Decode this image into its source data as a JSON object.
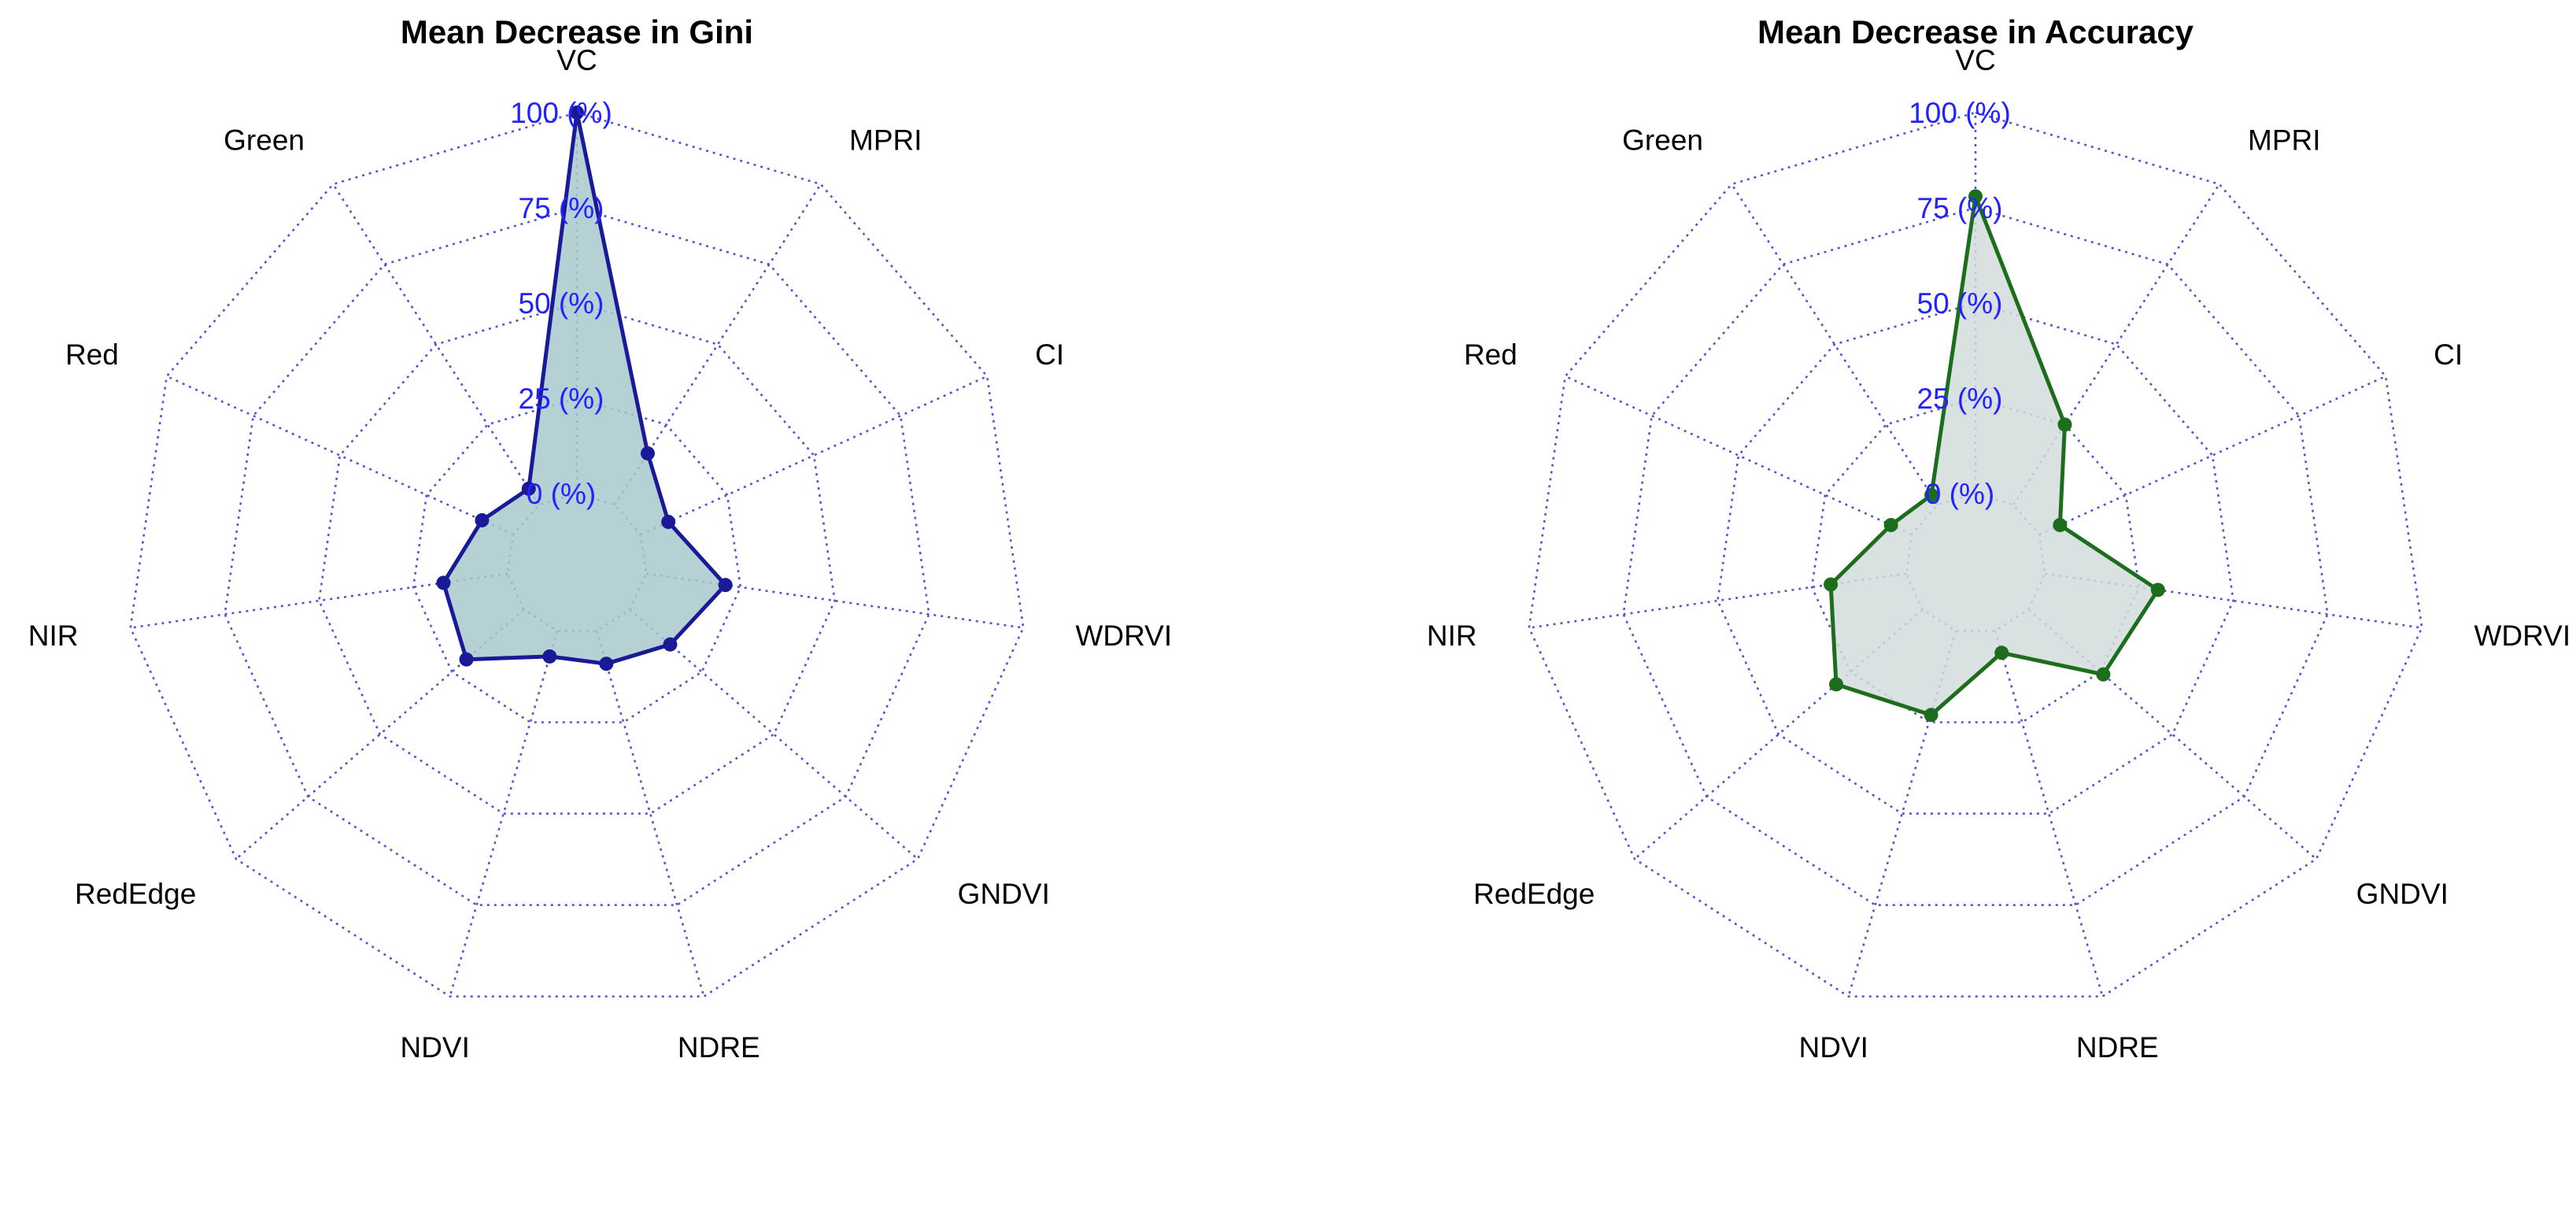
{
  "chart_data": [
    {
      "type": "radar",
      "title": "Mean Decrease in Gini",
      "axes": [
        "VC",
        "MPRI",
        "CI",
        "WDRVI",
        "GNDVI",
        "NDRE",
        "NDVI",
        "RedEdge",
        "NIR",
        "Red",
        "Green"
      ],
      "range": [
        0,
        100
      ],
      "tick_labels": [
        "0 (%)",
        "25 (%)",
        "50 (%)",
        "75 (%)",
        "100 (%)"
      ],
      "grid_levels": [
        0,
        25,
        50,
        75,
        100
      ],
      "series": [
        {
          "values": [
            100,
            16,
            8,
            21,
            14,
            9,
            7,
            20,
            17,
            9,
            5
          ]
        }
      ],
      "colors": {
        "line": "#1a1a99",
        "fill": "#a9c9cc",
        "grid": "#5555cc",
        "tick_text": "#2222ff"
      }
    },
    {
      "type": "radar",
      "title": "Mean Decrease in Accuracy",
      "axes": [
        "VC",
        "MPRI",
        "CI",
        "WDRVI",
        "GNDVI",
        "NDRE",
        "NDVI",
        "RedEdge",
        "NIR",
        "Red",
        "Green"
      ],
      "range": [
        0,
        100
      ],
      "tick_labels": [
        "0 (%)",
        "25 (%)",
        "50 (%)",
        "75 (%)",
        "100 (%)"
      ],
      "grid_levels": [
        0,
        25,
        50,
        75,
        100
      ],
      "series": [
        {
          "values": [
            78,
            25,
            6,
            30,
            26,
            6,
            23,
            30,
            20,
            6,
            3
          ]
        }
      ],
      "colors": {
        "line": "#1c6e1c",
        "fill": "#d3dcdc",
        "grid": "#5555cc",
        "tick_text": "#2222ff"
      }
    }
  ]
}
